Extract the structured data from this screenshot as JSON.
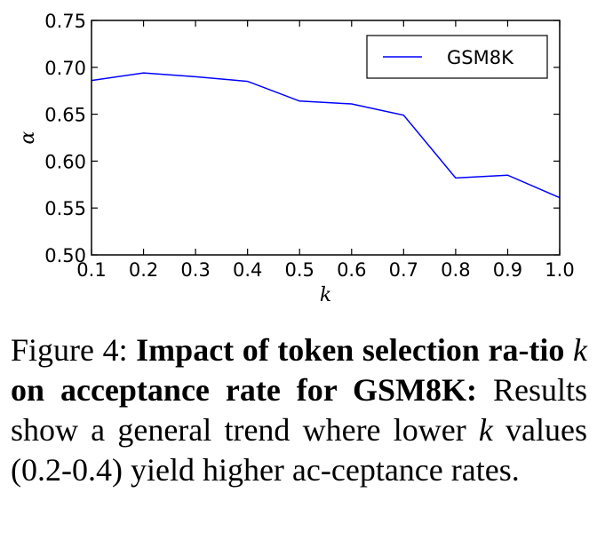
{
  "chart_data": {
    "type": "line",
    "x": [
      0.1,
      0.2,
      0.3,
      0.4,
      0.5,
      0.6,
      0.7,
      0.8,
      0.9,
      1.0
    ],
    "series": [
      {
        "name": "GSM8K",
        "color": "#0000ff",
        "values": [
          0.686,
          0.694,
          0.69,
          0.685,
          0.664,
          0.661,
          0.649,
          0.582,
          0.585,
          0.561
        ]
      }
    ],
    "xlabel": "k",
    "ylabel": "α",
    "xlim": [
      0.1,
      1.0
    ],
    "ylim": [
      0.5,
      0.75
    ],
    "xticks": [
      "0.1",
      "0.2",
      "0.3",
      "0.4",
      "0.5",
      "0.6",
      "0.7",
      "0.8",
      "0.9",
      "1.0"
    ],
    "yticks": [
      "0.50",
      "0.55",
      "0.60",
      "0.65",
      "0.70",
      "0.75"
    ],
    "legend_position": "top-right",
    "grid": false
  },
  "caption": {
    "prefix": "Figure 4: ",
    "bold1": "Impact of token selection ra-tio ",
    "bold_var": "k",
    "bold2": " on acceptance rate for GSM8K:",
    "body1": " Results show a general trend where lower ",
    "body_var": "k",
    "body2": " values (0.2-0.4) yield higher ac-ceptance rates."
  }
}
